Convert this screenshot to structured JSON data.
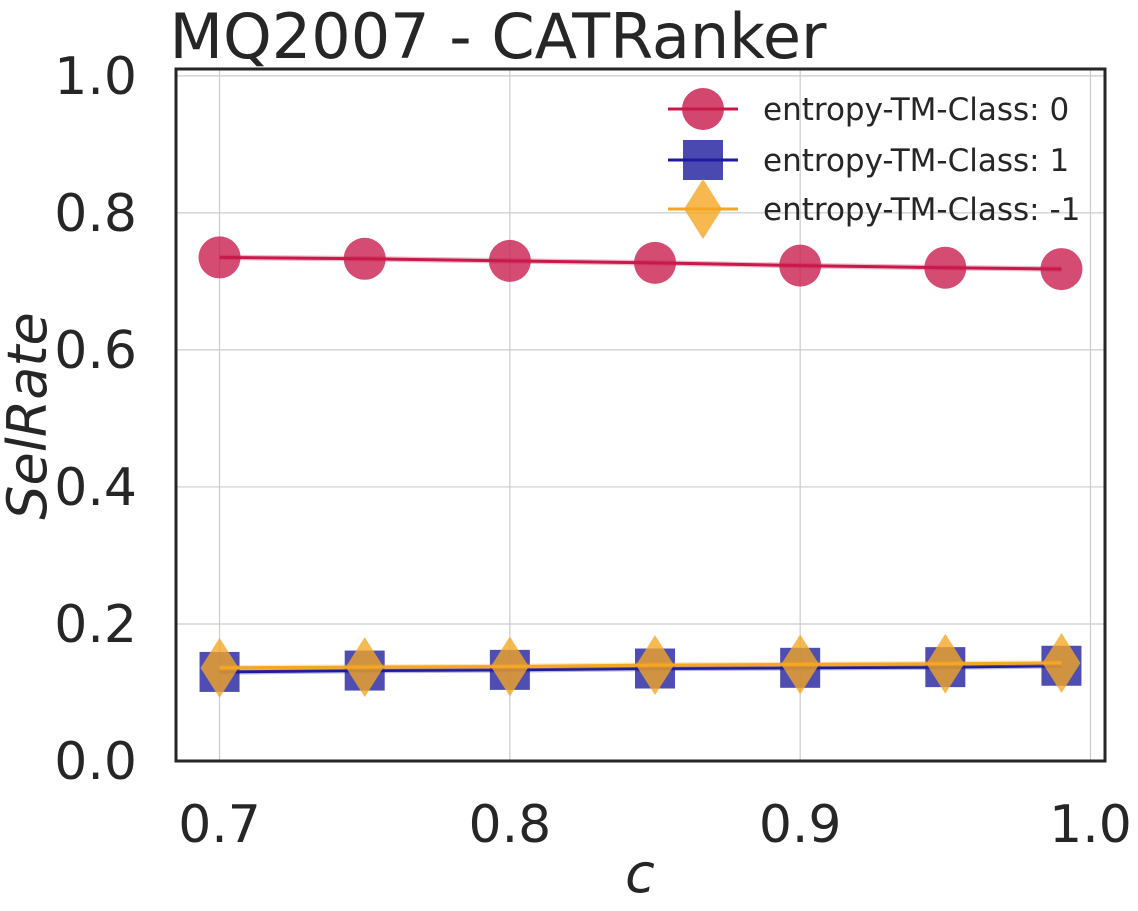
{
  "chart_data": {
    "type": "line",
    "title": "MQ2007 - CATRanker",
    "xlabel": "c",
    "ylabel": "SelRate",
    "xlim": [
      0.685,
      1.005
    ],
    "ylim": [
      0.0,
      1.01
    ],
    "xticks": [
      "0.7",
      "0.8",
      "0.9",
      "1.0"
    ],
    "xtick_values": [
      0.7,
      0.8,
      0.9,
      1.0
    ],
    "yticks": [
      "0.0",
      "0.2",
      "0.4",
      "0.6",
      "0.8",
      "1.0"
    ],
    "ytick_values": [
      0.0,
      0.2,
      0.4,
      0.6,
      0.8,
      1.0
    ],
    "grid": true,
    "legend_position": "top-right",
    "x": [
      0.7,
      0.75,
      0.8,
      0.85,
      0.9,
      0.95,
      0.99
    ],
    "series": [
      {
        "name": "entropy-TM-Class: 0",
        "marker": "circle",
        "color": "#c8194a",
        "values": [
          0.735,
          0.733,
          0.73,
          0.727,
          0.723,
          0.72,
          0.718
        ]
      },
      {
        "name": "entropy-TM-Class: 1",
        "marker": "square",
        "color": "#1c1c9c",
        "values": [
          0.13,
          0.132,
          0.133,
          0.135,
          0.136,
          0.137,
          0.139
        ]
      },
      {
        "name": "entropy-TM-Class: -1",
        "marker": "diamond",
        "color": "#f5a623",
        "values": [
          0.136,
          0.137,
          0.138,
          0.14,
          0.141,
          0.142,
          0.143
        ]
      }
    ]
  }
}
